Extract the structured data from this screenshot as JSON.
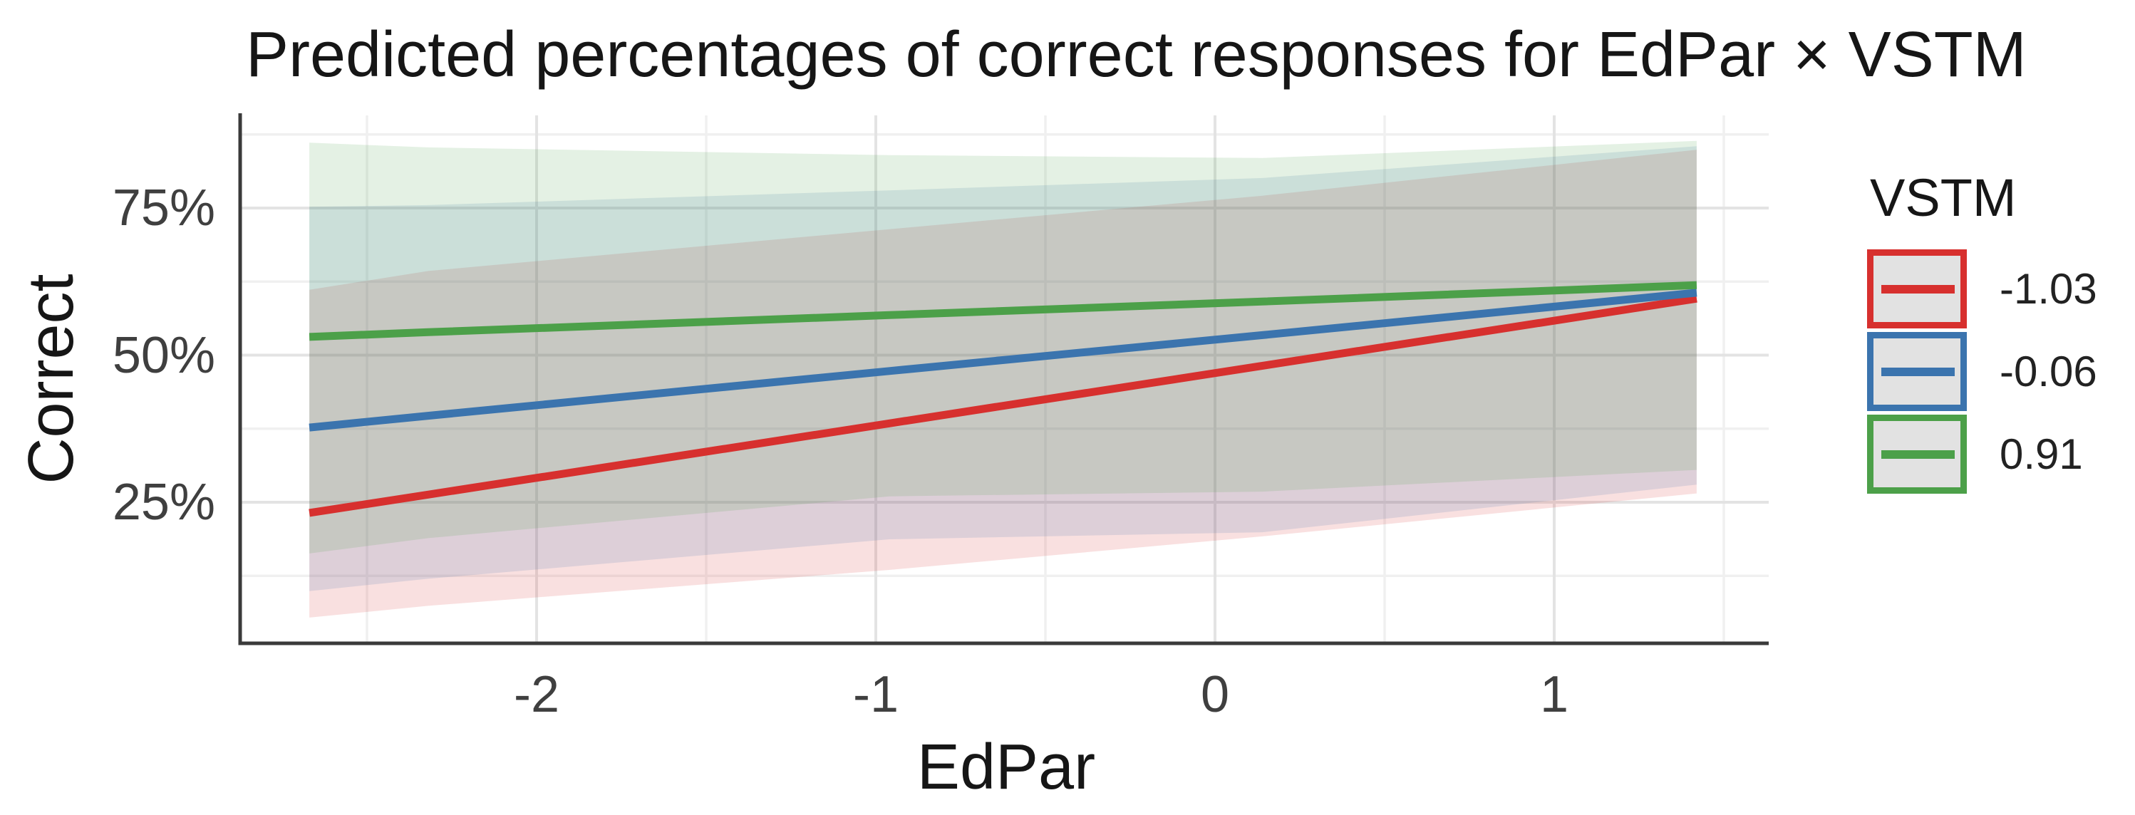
{
  "title": "Predicted percentages of correct responses for EdPar × VSTM",
  "axes": {
    "x": {
      "label": "EdPar",
      "ticks": [
        {
          "value": -2,
          "label": "-2"
        },
        {
          "value": -1,
          "label": "-1"
        },
        {
          "value": 0,
          "label": "0"
        },
        {
          "value": 1,
          "label": "1"
        }
      ],
      "minor_ticks": [
        -2.5,
        -1.5,
        -0.5,
        0.5,
        1.5
      ],
      "range": [
        -2.87,
        1.63
      ]
    },
    "y": {
      "label": "Correct",
      "ticks": [
        {
          "value": 75,
          "label": "75%"
        },
        {
          "value": 50,
          "label": "50%"
        },
        {
          "value": 25,
          "label": "25%"
        }
      ],
      "minor_ticks": [
        12.5,
        37.5,
        62.5,
        87.5
      ],
      "range": [
        1,
        90.7
      ]
    }
  },
  "legend": {
    "title": "VSTM",
    "items": [
      {
        "label": "-1.03",
        "color": "#D7302E"
      },
      {
        "label": "-0.06",
        "color": "#3B74AE"
      },
      {
        "label": "0.91",
        "color": "#4CA049"
      }
    ]
  },
  "colors": {
    "grid_major": "#e3e3e3",
    "grid_minor": "#f0f0f0",
    "axis_line": "#3a3a3a",
    "ribbon_opacity": 0.15,
    "legend_key_bg": "#e2e2e2"
  },
  "chart_data": {
    "type": "line",
    "title": "Predicted percentages of correct responses for EdPar × VSTM",
    "xlabel": "EdPar",
    "ylabel": "Correct",
    "legend_title": "VSTM",
    "legend_position": "right",
    "grid": true,
    "x_data_range": [
      -2.67,
      1.42
    ],
    "xlim": [
      -2.87,
      1.63
    ],
    "ylim_percent": [
      1,
      90.7
    ],
    "x": [
      -2.67,
      -2.32,
      -0.96,
      0.14,
      1.42
    ],
    "series": [
      {
        "name": "-1.03",
        "color": "#D7302E",
        "line": [
          23.2,
          26.3,
          38.4,
          48.2,
          59.6
        ],
        "ci_lo": [
          5.4,
          7.4,
          13.5,
          19.2,
          26.5
        ],
        "ci_hi": [
          61.1,
          64.3,
          71.4,
          77.1,
          84.9
        ]
      },
      {
        "name": "-0.06",
        "color": "#3B74AE",
        "line": [
          37.7,
          39.7,
          47.3,
          53.4,
          60.6
        ],
        "ci_lo": [
          9.9,
          12.0,
          18.7,
          19.9,
          28.0
        ],
        "ci_hi": [
          75.2,
          75.5,
          78.0,
          80.1,
          85.5
        ]
      },
      {
        "name": "0.91",
        "color": "#4CA049",
        "line": [
          53.1,
          53.9,
          56.8,
          59.1,
          61.9
        ],
        "ci_lo": [
          16.3,
          18.9,
          26.0,
          26.8,
          30.5
        ],
        "ci_hi": [
          86.1,
          85.3,
          84.0,
          83.5,
          86.4
        ]
      }
    ]
  }
}
